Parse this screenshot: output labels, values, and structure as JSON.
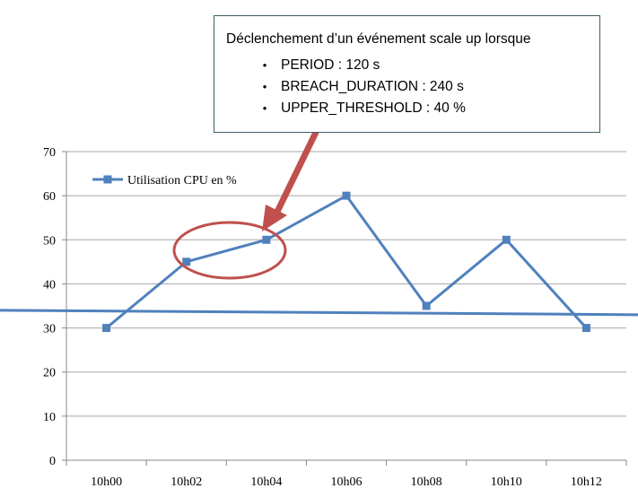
{
  "chart_data": {
    "type": "line",
    "categories": [
      "10h00",
      "10h02",
      "10h04",
      "10h06",
      "10h08",
      "10h10",
      "10h12"
    ],
    "series": [
      {
        "name": "Utilisation CPU en %",
        "values": [
          30,
          45,
          50,
          60,
          35,
          50,
          30
        ],
        "color": "#4f81bd"
      }
    ],
    "ylim": [
      0,
      70
    ],
    "yticks": [
      0,
      10,
      20,
      30,
      40,
      50,
      60,
      70
    ],
    "grid": true,
    "legend": "top-left",
    "threshold_line": {
      "y_start": 34,
      "y_end": 33,
      "color": "#4f81bd"
    },
    "highlight_ellipse": {
      "around_categories": [
        "10h02",
        "10h04"
      ],
      "color": "#c0504d"
    },
    "arrow_color": "#c0504d"
  },
  "callout": {
    "title": "Déclenchement d’un événement scale up lorsque",
    "items": [
      "PERIOD : 120 s",
      "BREACH_DURATION : 240 s",
      "UPPER_THRESHOLD : 40 %"
    ],
    "bullet": "•"
  }
}
